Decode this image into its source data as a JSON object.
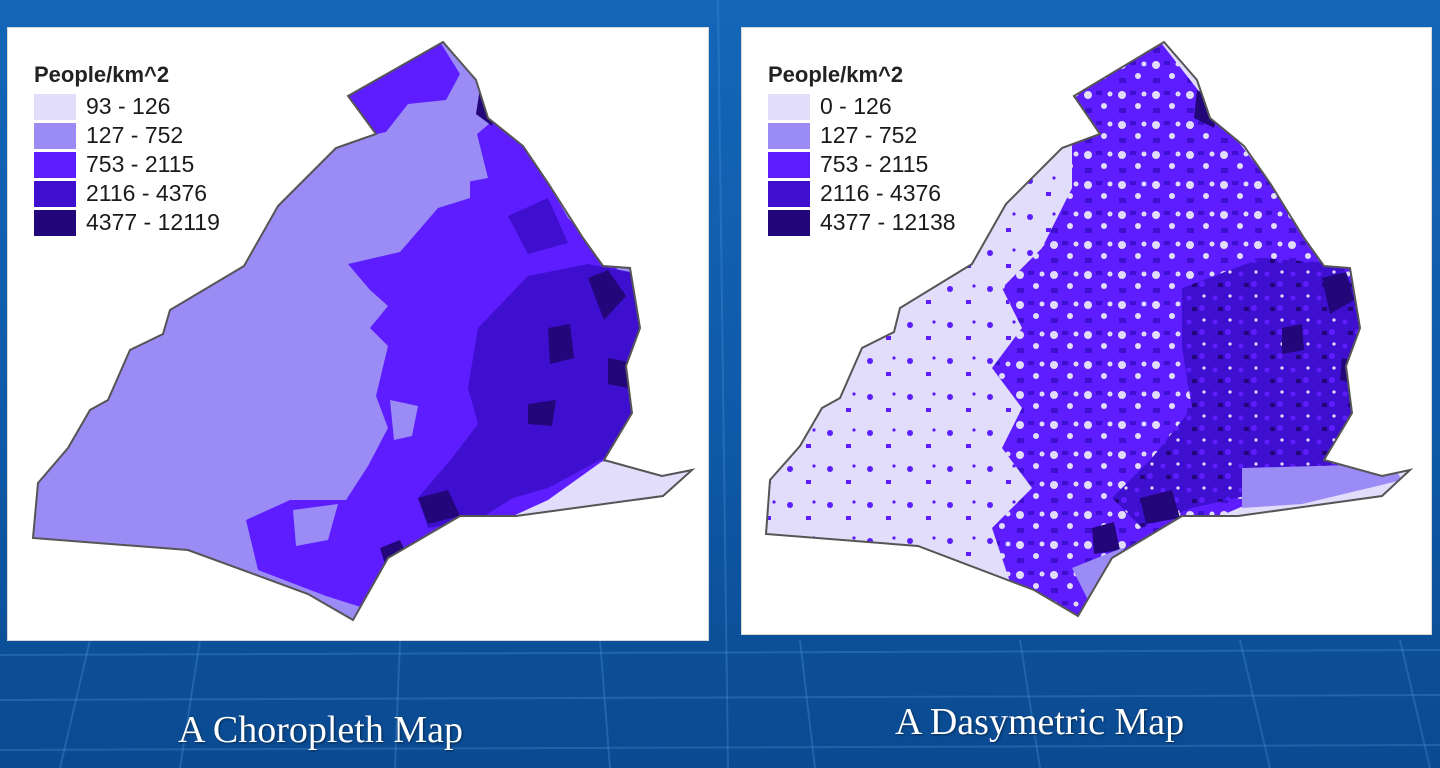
{
  "left_map": {
    "caption": "A Choropleth Map",
    "legend": {
      "title": "People/km^2",
      "items": [
        {
          "label": "93 - 126",
          "color": "#e1ddfa"
        },
        {
          "label": "127 - 752",
          "color": "#9b8cf5"
        },
        {
          "label": "753 - 2115",
          "color": "#5d1dff"
        },
        {
          "label": "2116 - 4376",
          "color": "#3f0fcf"
        },
        {
          "label": "4377 - 12119",
          "color": "#22067a"
        }
      ]
    }
  },
  "right_map": {
    "caption": "A Dasymetric Map",
    "legend": {
      "title": "People/km^2",
      "items": [
        {
          "label": "0 - 126",
          "color": "#e1ddfa"
        },
        {
          "label": "127 - 752",
          "color": "#9b8cf5"
        },
        {
          "label": "753 - 2115",
          "color": "#5d1dff"
        },
        {
          "label": "2116 - 4376",
          "color": "#3f0fcf"
        },
        {
          "label": "4377 - 12138",
          "color": "#22067a"
        }
      ]
    }
  },
  "colors": {
    "background": "#1466b8",
    "panel": "#ffffff",
    "boundary": "#555555"
  }
}
